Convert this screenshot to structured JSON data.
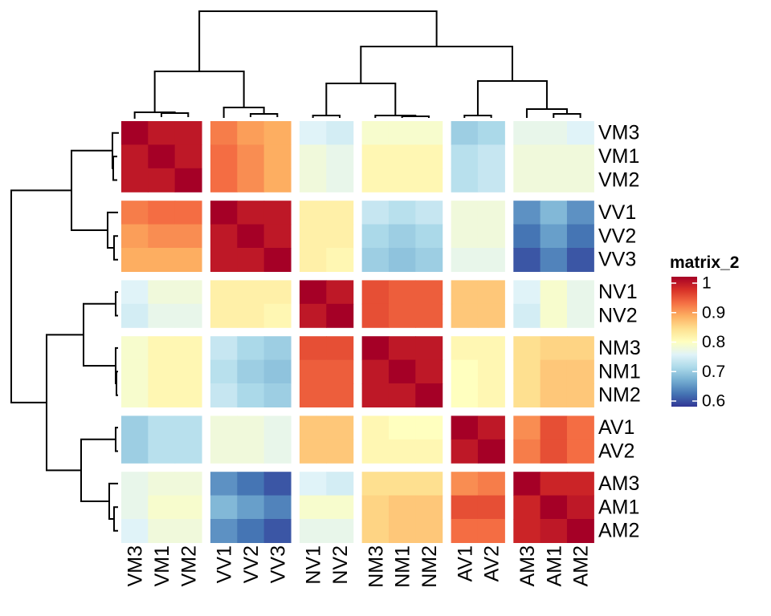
{
  "chart_data": {
    "type": "heatmap",
    "title": "",
    "legend": {
      "title": "matrix_2",
      "ticks": [
        1,
        0.9,
        0.8,
        0.7,
        0.6
      ],
      "tick_labels": [
        "1",
        "0.9",
        "0.8",
        "0.7",
        "0.6"
      ],
      "range": [
        0.6,
        1.0
      ],
      "colors": [
        "#313695",
        "#4575b4",
        "#74add1",
        "#abd9e9",
        "#e0f3f8",
        "#ffffbf",
        "#fee090",
        "#fdae61",
        "#f46d43",
        "#d73027",
        "#a50026"
      ],
      "placement": "right"
    },
    "rows": [
      "VM3",
      "VM1",
      "VM2",
      "VV1",
      "VV2",
      "VV3",
      "NV1",
      "NV2",
      "NM3",
      "NM1",
      "NM2",
      "AV1",
      "AV2",
      "AM3",
      "AM1",
      "AM2"
    ],
    "columns": [
      "VM3",
      "VM1",
      "VM2",
      "VV1",
      "VV2",
      "VV3",
      "NV1",
      "NV2",
      "NM3",
      "NM1",
      "NM2",
      "AV1",
      "AV2",
      "AM3",
      "AM1",
      "AM2"
    ],
    "row_splits": [
      3,
      3,
      2,
      3,
      2,
      3
    ],
    "column_splits": [
      3,
      3,
      2,
      3,
      2,
      3
    ],
    "values": [
      [
        1.0,
        0.98,
        0.98,
        0.91,
        0.89,
        0.88,
        0.76,
        0.75,
        0.79,
        0.79,
        0.79,
        0.71,
        0.72,
        0.77,
        0.77,
        0.76
      ],
      [
        0.98,
        1.0,
        0.98,
        0.92,
        0.9,
        0.88,
        0.78,
        0.77,
        0.81,
        0.81,
        0.81,
        0.73,
        0.74,
        0.78,
        0.78,
        0.78
      ],
      [
        0.98,
        0.98,
        1.0,
        0.92,
        0.9,
        0.88,
        0.78,
        0.77,
        0.81,
        0.81,
        0.81,
        0.73,
        0.74,
        0.78,
        0.78,
        0.78
      ],
      [
        0.91,
        0.92,
        0.92,
        1.0,
        0.98,
        0.98,
        0.82,
        0.82,
        0.74,
        0.73,
        0.74,
        0.78,
        0.78,
        0.66,
        0.69,
        0.66
      ],
      [
        0.89,
        0.9,
        0.9,
        0.98,
        1.0,
        0.98,
        0.82,
        0.82,
        0.72,
        0.71,
        0.72,
        0.78,
        0.78,
        0.64,
        0.67,
        0.64
      ],
      [
        0.88,
        0.88,
        0.88,
        0.98,
        0.98,
        1.0,
        0.82,
        0.81,
        0.71,
        0.7,
        0.71,
        0.77,
        0.77,
        0.62,
        0.65,
        0.62
      ],
      [
        0.76,
        0.78,
        0.78,
        0.82,
        0.82,
        0.82,
        1.0,
        0.98,
        0.94,
        0.93,
        0.93,
        0.86,
        0.86,
        0.76,
        0.79,
        0.77
      ],
      [
        0.75,
        0.77,
        0.77,
        0.82,
        0.82,
        0.81,
        0.98,
        1.0,
        0.94,
        0.93,
        0.93,
        0.86,
        0.86,
        0.75,
        0.79,
        0.77
      ],
      [
        0.79,
        0.81,
        0.81,
        0.74,
        0.72,
        0.71,
        0.94,
        0.94,
        1.0,
        0.98,
        0.98,
        0.81,
        0.81,
        0.84,
        0.85,
        0.85
      ],
      [
        0.79,
        0.81,
        0.81,
        0.73,
        0.71,
        0.7,
        0.93,
        0.93,
        0.98,
        1.0,
        0.98,
        0.8,
        0.81,
        0.84,
        0.86,
        0.86
      ],
      [
        0.79,
        0.81,
        0.81,
        0.74,
        0.72,
        0.71,
        0.93,
        0.93,
        0.98,
        0.98,
        1.0,
        0.8,
        0.81,
        0.84,
        0.86,
        0.86
      ],
      [
        0.71,
        0.73,
        0.73,
        0.78,
        0.78,
        0.77,
        0.86,
        0.86,
        0.81,
        0.8,
        0.8,
        1.0,
        0.98,
        0.9,
        0.94,
        0.92
      ],
      [
        0.71,
        0.73,
        0.73,
        0.78,
        0.78,
        0.77,
        0.86,
        0.86,
        0.81,
        0.81,
        0.81,
        0.98,
        1.0,
        0.91,
        0.94,
        0.92
      ],
      [
        0.77,
        0.78,
        0.78,
        0.66,
        0.64,
        0.62,
        0.76,
        0.75,
        0.84,
        0.84,
        0.84,
        0.9,
        0.91,
        1.0,
        0.97,
        0.97
      ],
      [
        0.77,
        0.79,
        0.79,
        0.69,
        0.67,
        0.65,
        0.79,
        0.79,
        0.85,
        0.86,
        0.86,
        0.94,
        0.94,
        0.97,
        1.0,
        0.98
      ],
      [
        0.76,
        0.78,
        0.78,
        0.66,
        0.64,
        0.62,
        0.77,
        0.77,
        0.85,
        0.86,
        0.86,
        0.92,
        0.92,
        0.97,
        0.98,
        1.0
      ]
    ],
    "row_dendrogram": "clustered (6 groups)",
    "column_dendrogram": "clustered (6 groups)",
    "xlabel": "",
    "ylabel": ""
  }
}
